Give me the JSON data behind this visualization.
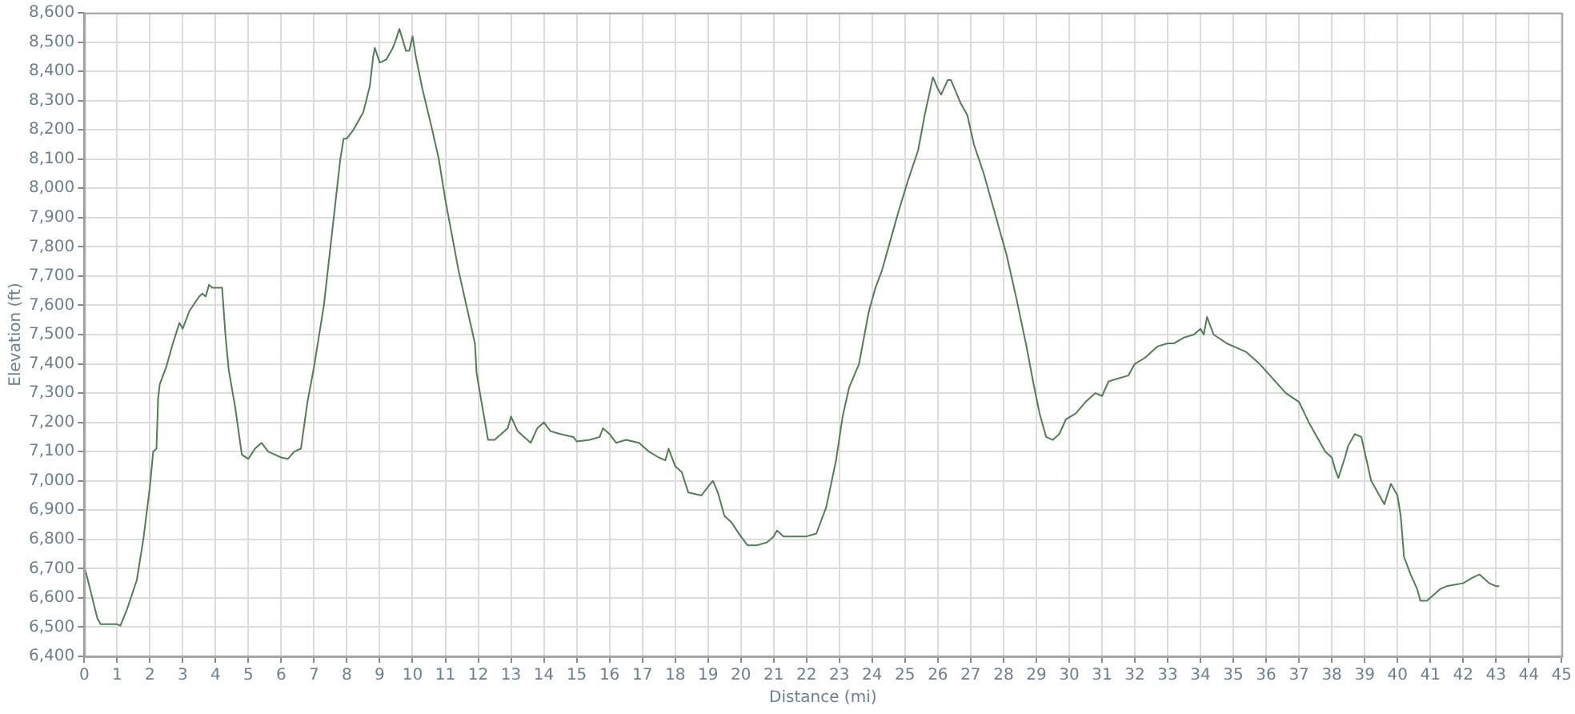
{
  "chart_data": {
    "type": "line",
    "xlabel": "Distance (mi)",
    "ylabel": "Elevation (ft)",
    "xlim": [
      0,
      45
    ],
    "xticks": [
      0,
      1,
      2,
      3,
      4,
      5,
      6,
      7,
      8,
      9,
      10,
      11,
      12,
      13,
      14,
      15,
      16,
      17,
      18,
      19,
      20,
      21,
      22,
      23,
      24,
      25,
      26,
      27,
      28,
      29,
      30,
      31,
      32,
      33,
      34,
      35,
      36,
      37,
      38,
      39,
      40,
      41,
      42,
      43,
      44,
      45
    ],
    "ylim": [
      6400,
      8600
    ],
    "yticks": [
      {
        "value": 6400,
        "label": "6,400"
      },
      {
        "value": 6500,
        "label": "6,500"
      },
      {
        "value": 6600,
        "label": "6,600"
      },
      {
        "value": 6700,
        "label": "6,700"
      },
      {
        "value": 6800,
        "label": "6,800"
      },
      {
        "value": 6900,
        "label": "6,900"
      },
      {
        "value": 7000,
        "label": "7,000"
      },
      {
        "value": 7100,
        "label": "7,100"
      },
      {
        "value": 7200,
        "label": "7,200"
      },
      {
        "value": 7300,
        "label": "7,300"
      },
      {
        "value": 7400,
        "label": "7,400"
      },
      {
        "value": 7500,
        "label": "7,500"
      },
      {
        "value": 7600,
        "label": "7,600"
      },
      {
        "value": 7700,
        "label": "7,700"
      },
      {
        "value": 7800,
        "label": "7,800"
      },
      {
        "value": 7900,
        "label": "7,900"
      },
      {
        "value": 8000,
        "label": "8,000"
      },
      {
        "value": 8100,
        "label": "8,100"
      },
      {
        "value": 8200,
        "label": "8,200"
      },
      {
        "value": 8300,
        "label": "8,300"
      },
      {
        "value": 8400,
        "label": "8,400"
      },
      {
        "value": 8500,
        "label": "8,500"
      },
      {
        "value": 8600,
        "label": "8,600"
      }
    ],
    "grid": true,
    "legend": false,
    "marker": "none",
    "line_style": "solid",
    "series": [
      {
        "color": "#4f7f52",
        "x": [
          0,
          0.2,
          0.4,
          0.5,
          1.0,
          1.1,
          1.3,
          1.6,
          1.8,
          2.0,
          2.1,
          2.2,
          2.25,
          2.3,
          2.5,
          2.7,
          2.9,
          3.0,
          3.2,
          3.5,
          3.6,
          3.7,
          3.8,
          3.9,
          4.2,
          4.3,
          4.4,
          4.6,
          4.8,
          5.0,
          5.2,
          5.4,
          5.6,
          5.8,
          6.0,
          6.2,
          6.4,
          6.6,
          6.8,
          7.0,
          7.3,
          7.6,
          7.8,
          7.9,
          8.0,
          8.2,
          8.5,
          8.7,
          8.8,
          8.85,
          9.0,
          9.2,
          9.4,
          9.5,
          9.6,
          9.8,
          9.9,
          10.0,
          10.1,
          10.3,
          10.6,
          10.8,
          11.0,
          11.1,
          11.4,
          11.7,
          11.9,
          11.95,
          12.1,
          12.3,
          12.5,
          12.7,
          12.9,
          13.0,
          13.2,
          13.4,
          13.6,
          13.8,
          14.0,
          14.2,
          14.5,
          14.9,
          15.0,
          15.4,
          15.7,
          15.8,
          16.0,
          16.2,
          16.5,
          16.9,
          17.2,
          17.5,
          17.7,
          17.8,
          18.0,
          18.2,
          18.4,
          18.8,
          19.0,
          19.15,
          19.3,
          19.5,
          19.7,
          20.0,
          20.2,
          20.5,
          20.8,
          21.0,
          21.1,
          21.3,
          21.7,
          22.0,
          22.3,
          22.6,
          22.9,
          23.1,
          23.3,
          23.6,
          23.9,
          24.1,
          24.3,
          24.5,
          24.8,
          25.1,
          25.4,
          25.6,
          25.85,
          26.0,
          26.1,
          26.3,
          26.4,
          26.7,
          26.9,
          27.1,
          27.4,
          27.8,
          28.1,
          28.4,
          28.7,
          28.9,
          29.1,
          29.3,
          29.5,
          29.7,
          29.9,
          30.2,
          30.5,
          30.8,
          31.0,
          31.2,
          31.5,
          31.8,
          32.0,
          32.3,
          32.7,
          33.0,
          33.2,
          33.5,
          33.8,
          34.0,
          34.1,
          34.2,
          34.4,
          34.8,
          35.0,
          35.4,
          35.8,
          36.2,
          36.6,
          37.0,
          37.3,
          37.6,
          37.8,
          38.0,
          38.1,
          38.2,
          38.4,
          38.5,
          38.7,
          38.9,
          39.0,
          39.2,
          39.4,
          39.6,
          39.8,
          40.0,
          40.1,
          40.2,
          40.4,
          40.6,
          40.7,
          40.9,
          41.1,
          41.3,
          41.5,
          42.0,
          42.3,
          42.5,
          42.8,
          43.0,
          43.1
        ],
        "values": [
          6710,
          6620,
          6530,
          6510,
          6510,
          6505,
          6560,
          6660,
          6800,
          6980,
          7100,
          7110,
          7280,
          7330,
          7390,
          7470,
          7540,
          7520,
          7580,
          7630,
          7640,
          7630,
          7670,
          7660,
          7660,
          7500,
          7380,
          7250,
          7090,
          7075,
          7110,
          7130,
          7100,
          7090,
          7080,
          7075,
          7100,
          7110,
          7270,
          7390,
          7600,
          7900,
          8100,
          8170,
          8170,
          8200,
          8260,
          8350,
          8450,
          8480,
          8430,
          8440,
          8480,
          8510,
          8545,
          8470,
          8470,
          8520,
          8450,
          8340,
          8200,
          8100,
          7960,
          7900,
          7720,
          7570,
          7470,
          7370,
          7270,
          7140,
          7140,
          7160,
          7180,
          7220,
          7170,
          7150,
          7130,
          7180,
          7200,
          7170,
          7160,
          7150,
          7135,
          7140,
          7150,
          7180,
          7160,
          7130,
          7140,
          7130,
          7100,
          7080,
          7070,
          7110,
          7050,
          7030,
          6960,
          6950,
          6980,
          7000,
          6960,
          6880,
          6860,
          6810,
          6780,
          6780,
          6790,
          6810,
          6830,
          6810,
          6810,
          6810,
          6820,
          6910,
          7070,
          7220,
          7320,
          7400,
          7580,
          7660,
          7720,
          7800,
          7920,
          8030,
          8130,
          8250,
          8380,
          8340,
          8320,
          8370,
          8370,
          8290,
          8250,
          8150,
          8050,
          7890,
          7770,
          7620,
          7460,
          7340,
          7230,
          7150,
          7140,
          7160,
          7210,
          7230,
          7270,
          7300,
          7290,
          7340,
          7350,
          7360,
          7400,
          7420,
          7460,
          7470,
          7470,
          7490,
          7500,
          7520,
          7500,
          7560,
          7500,
          7470,
          7460,
          7440,
          7400,
          7350,
          7300,
          7270,
          7200,
          7140,
          7100,
          7080,
          7040,
          7010,
          7080,
          7120,
          7160,
          7150,
          7100,
          7000,
          6960,
          6920,
          6990,
          6950,
          6880,
          6740,
          6680,
          6630,
          6590,
          6590,
          6610,
          6630,
          6640,
          6650,
          6670,
          6680,
          6650,
          6640,
          6640
        ]
      }
    ]
  }
}
